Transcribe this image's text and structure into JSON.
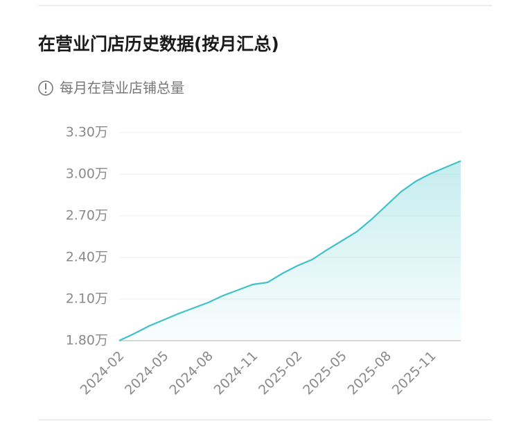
{
  "chart_data": {
    "type": "line",
    "title": "在营业门店历史数据(按月汇总)",
    "subtitle": "每月在营业店铺总量",
    "categories": [
      "2024-02",
      null,
      null,
      "2024-05",
      null,
      null,
      "2024-08",
      null,
      null,
      "2024-11",
      null,
      null,
      "2025-02",
      null,
      null,
      "2025-05",
      null,
      null,
      "2025-08",
      null,
      null,
      "2025-11",
      null,
      null
    ],
    "values": [
      1.8,
      1.85,
      1.905,
      1.95,
      1.995,
      2.035,
      2.075,
      2.125,
      2.165,
      2.205,
      2.22,
      2.285,
      2.34,
      2.385,
      2.455,
      2.52,
      2.585,
      2.675,
      2.775,
      2.875,
      2.95,
      3.005,
      3.05,
      3.095
    ],
    "color": "#3ec1c8",
    "ylim": [
      1.8,
      3.3
    ],
    "yticks": [
      {
        "value": 1.8,
        "label": "1.80万"
      },
      {
        "value": 2.1,
        "label": "2.10万"
      },
      {
        "value": 2.4,
        "label": "2.40万"
      },
      {
        "value": 2.7,
        "label": "2.70万"
      },
      {
        "value": 3.0,
        "label": "3.00万"
      },
      {
        "value": 3.3,
        "label": "3.30万"
      }
    ],
    "grid": true
  }
}
